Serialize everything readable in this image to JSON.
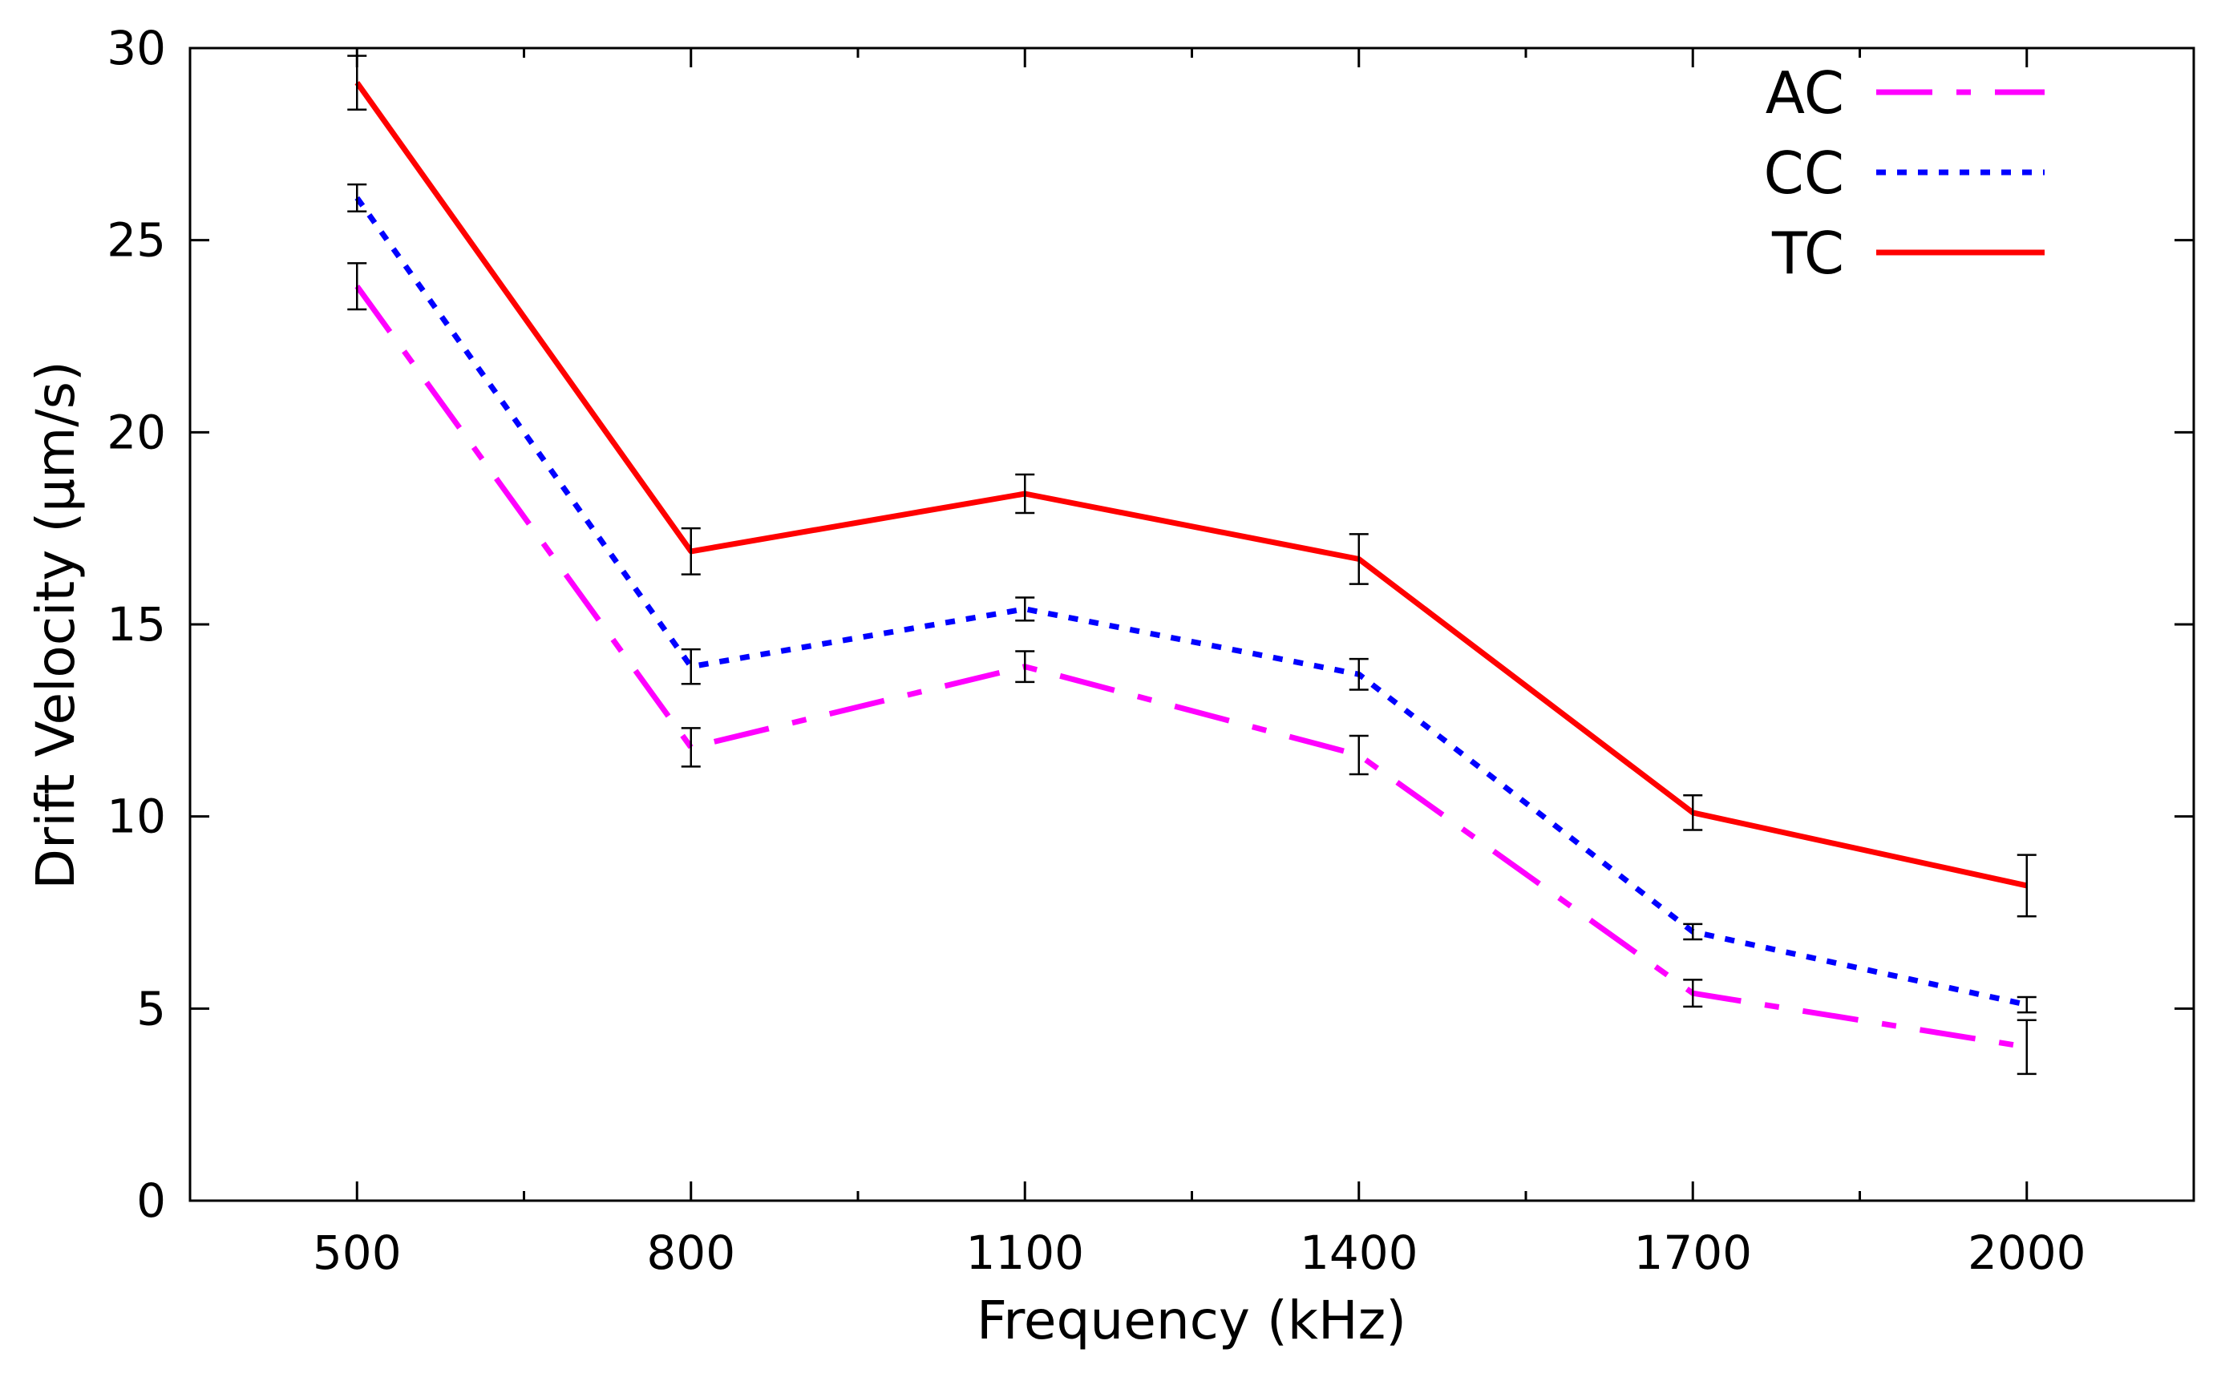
{
  "chart_data": {
    "type": "line",
    "title": "",
    "xlabel": "Frequency (kHz)",
    "ylabel": "Drift Velocity (µm/s)",
    "x": [
      500,
      800,
      1100,
      1400,
      1700,
      2000
    ],
    "xlim": [
      350,
      2150
    ],
    "ylim": [
      0,
      30
    ],
    "xticks": [
      500,
      800,
      1100,
      1400,
      1700,
      2000
    ],
    "xminor_ticks": [
      650,
      950,
      1250,
      1550,
      1850
    ],
    "yticks": [
      0,
      5,
      10,
      15,
      20,
      25,
      30
    ],
    "grid": false,
    "legend_position": "top-right",
    "series": [
      {
        "name": "AC",
        "color": "#ff00ff",
        "style": "dash-dot",
        "values": [
          23.8,
          11.8,
          13.9,
          11.6,
          5.4,
          4.0
        ],
        "errors": [
          0.6,
          0.5,
          0.4,
          0.5,
          0.35,
          0.7
        ]
      },
      {
        "name": "CC",
        "color": "#0000ff",
        "style": "dotted",
        "values": [
          26.1,
          13.9,
          15.4,
          13.7,
          7.0,
          5.1
        ],
        "errors": [
          0.35,
          0.45,
          0.3,
          0.4,
          0.2,
          0.2
        ]
      },
      {
        "name": "TC",
        "color": "#ff0000",
        "style": "solid",
        "values": [
          29.1,
          16.9,
          18.4,
          16.7,
          10.1,
          8.2
        ],
        "errors": [
          0.7,
          0.6,
          0.5,
          0.65,
          0.45,
          0.8
        ]
      }
    ]
  }
}
